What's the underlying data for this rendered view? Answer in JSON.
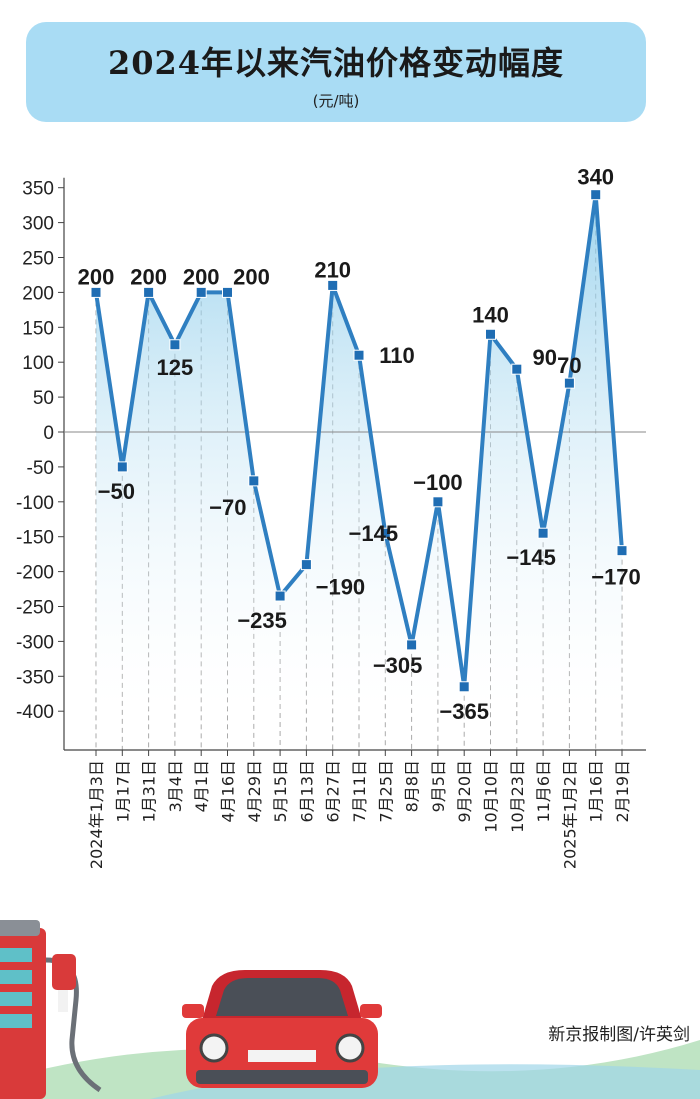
{
  "header": {
    "title": "2024年以来汽油价格变动幅度",
    "unit": "(元/吨)"
  },
  "credit": "新京报制图/许英剑",
  "colors": {
    "line": "#2f7fc1",
    "marker": "#1f6db3",
    "banner": "#a9dcf4",
    "fill_top": "#7fc6e8"
  },
  "chart_data": {
    "type": "line",
    "title": "2024年以来汽油价格变动幅度",
    "ylabel": "(元/吨)",
    "xlabel": "",
    "categories": [
      "2024年1月3日",
      "1月17日",
      "1月31日",
      "3月4日",
      "4月1日",
      "4月16日",
      "4月29日",
      "5月15日",
      "6月13日",
      "6月27日",
      "7月11日",
      "7月25日",
      "8月8日",
      "9月5日",
      "9月20日",
      "10月10日",
      "10月23日",
      "11月6日",
      "2025年1月2日",
      "1月16日",
      "2月19日"
    ],
    "values": [
      200,
      -50,
      200,
      125,
      200,
      200,
      -70,
      -235,
      -190,
      210,
      110,
      -145,
      -305,
      -100,
      -365,
      140,
      90,
      -145,
      70,
      340,
      -170
    ],
    "data_labels": [
      "200",
      "−50",
      "200",
      "125",
      "200",
      "200",
      "−70",
      "−235",
      "−190",
      "210",
      "110",
      "−145",
      "−305",
      "−100",
      "−365",
      "140",
      "90",
      "−145",
      "70",
      "340",
      "−170"
    ],
    "yticks": [
      "350",
      "300",
      "250",
      "200",
      "150",
      "100",
      "50",
      "0",
      "-50",
      "-100",
      "-150",
      "-200",
      "-250",
      "-300",
      "-350",
      "-400"
    ],
    "ytick_values": [
      350,
      300,
      250,
      200,
      150,
      100,
      50,
      0,
      -50,
      -100,
      -150,
      -200,
      -250,
      -300,
      -350,
      -400
    ],
    "ylim": [
      -440,
      370
    ],
    "grid": "vertical-dashed",
    "legend": "none"
  }
}
